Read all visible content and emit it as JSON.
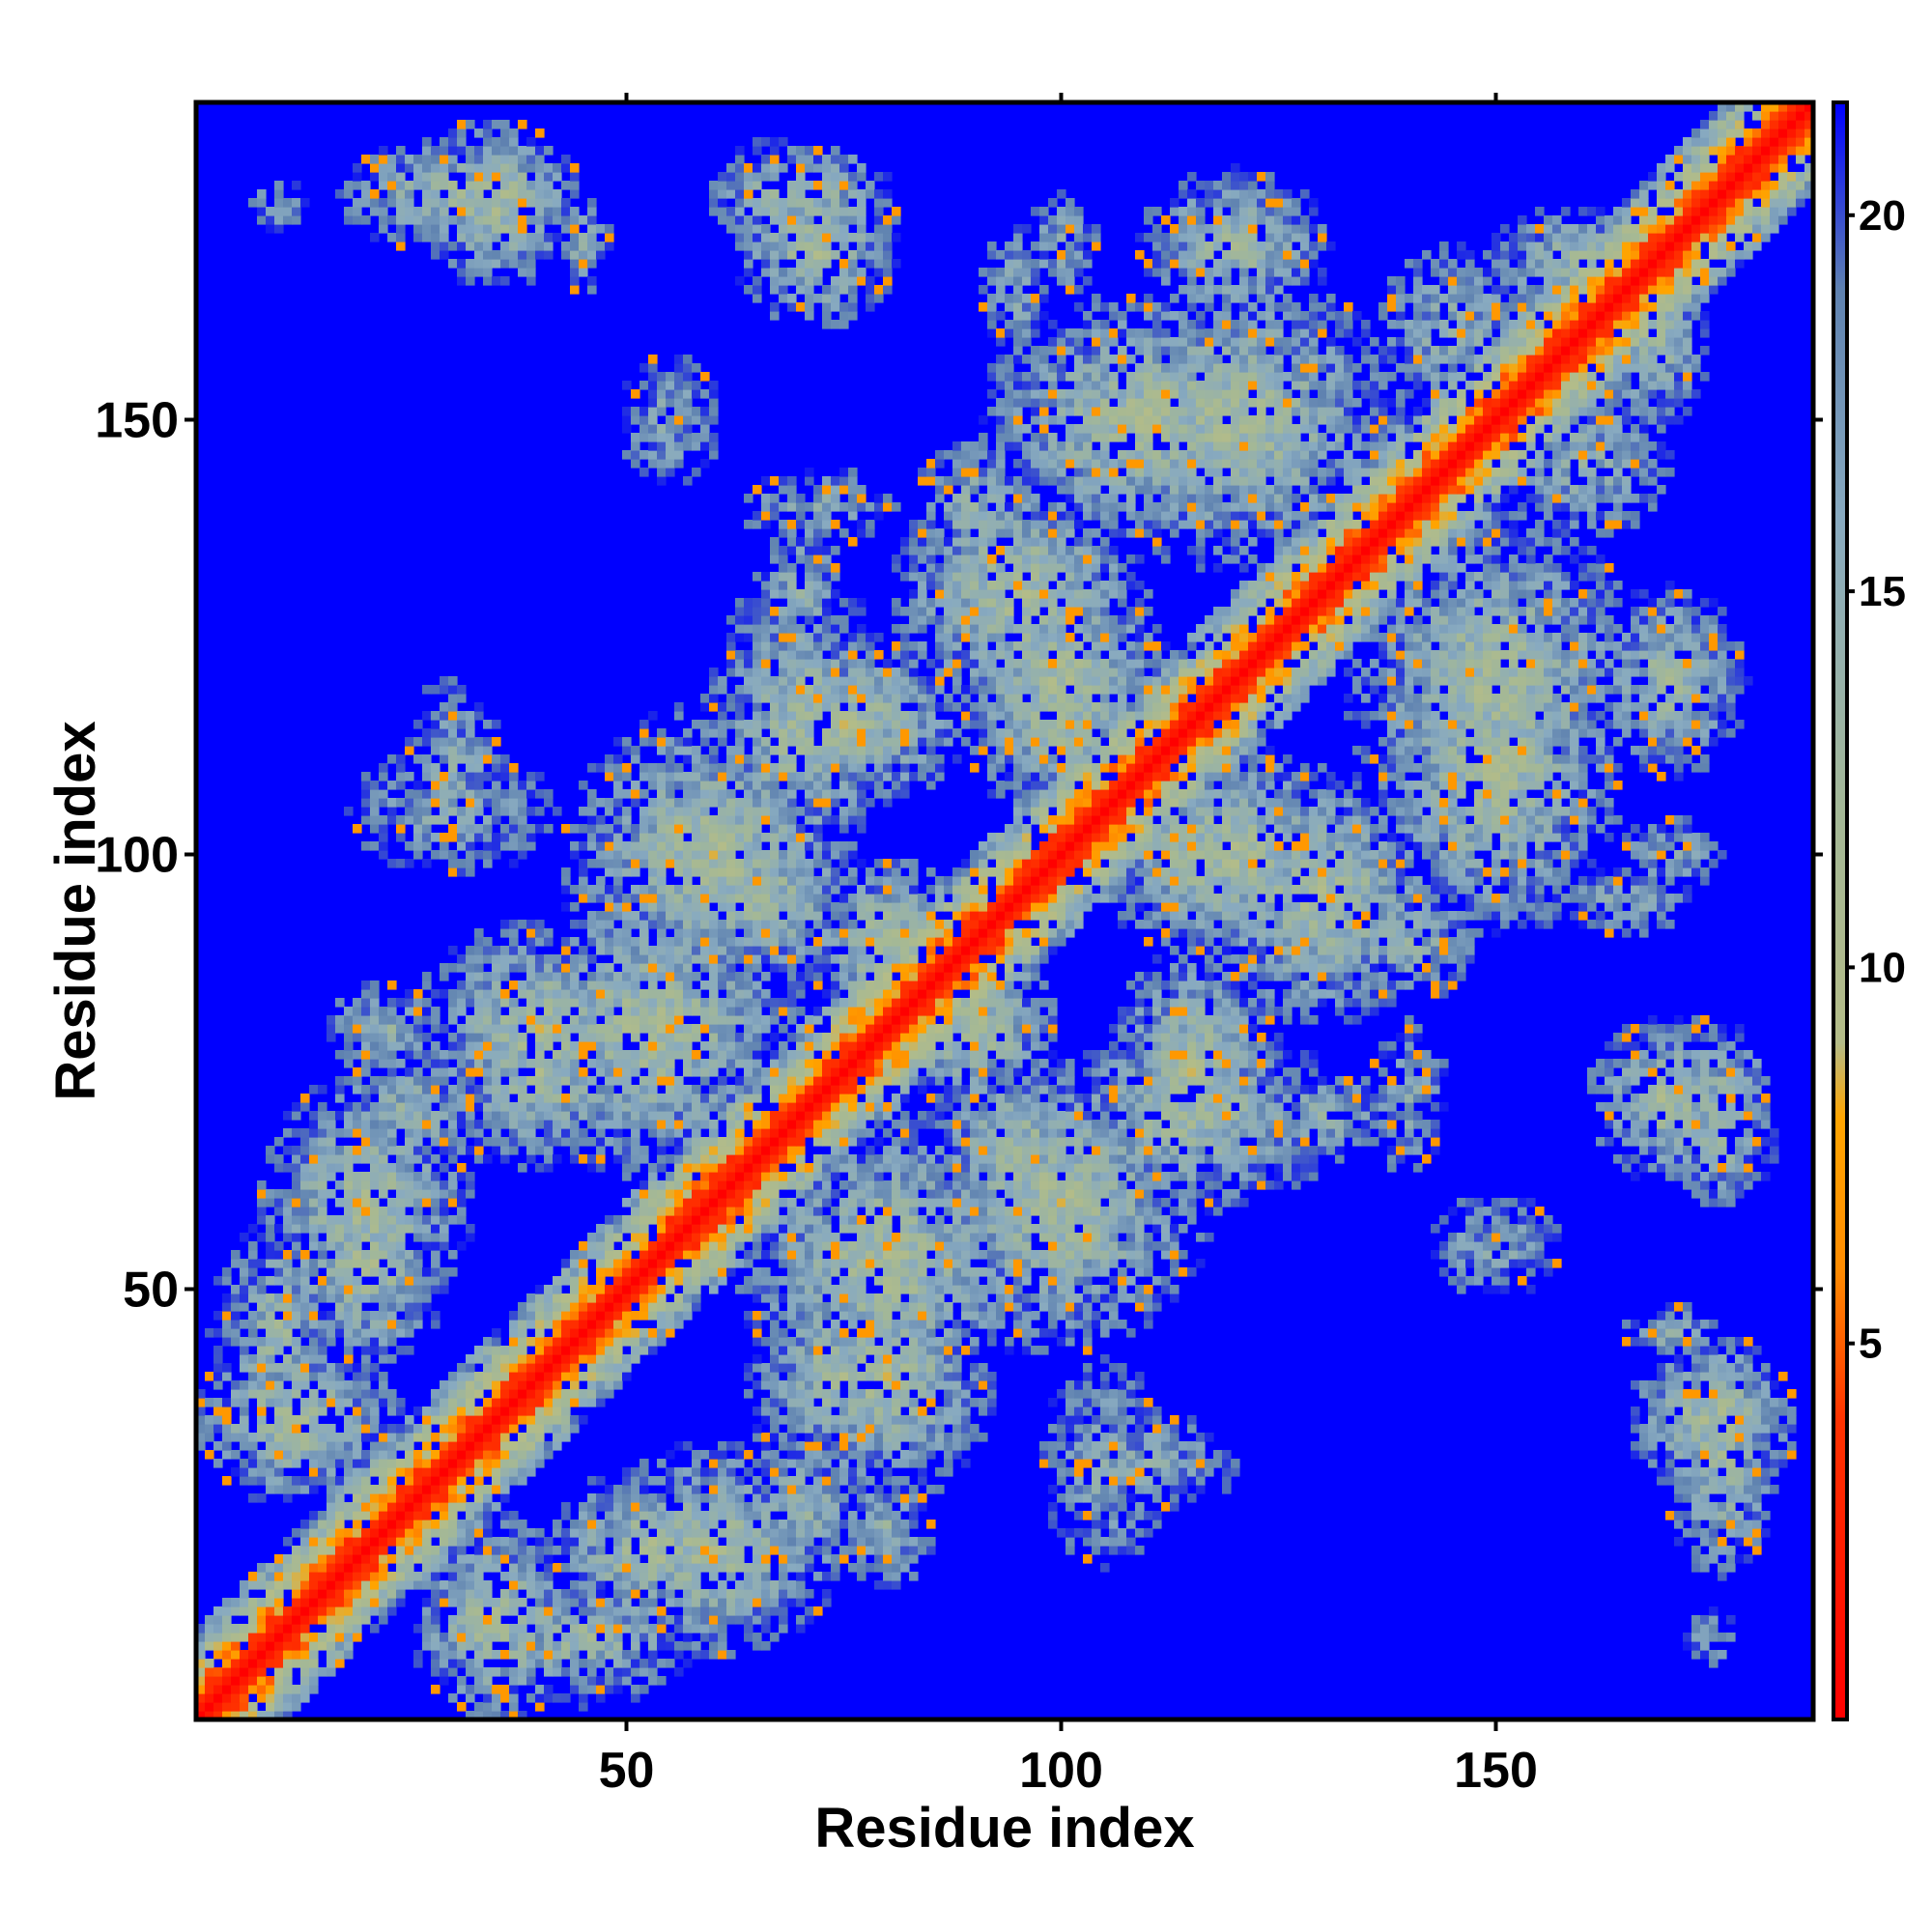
{
  "chart_data": {
    "type": "heatmap",
    "title": "",
    "xlabel": "Residue index",
    "ylabel": "Residue index",
    "n_residues": 186,
    "xlim": [
      1,
      186
    ],
    "ylim": [
      1,
      186
    ],
    "x_ticks": [
      50,
      100,
      150
    ],
    "y_ticks": [
      50,
      100,
      150
    ],
    "x_tick_labels": [
      "50",
      "100",
      "150"
    ],
    "y_tick_labels": [
      "50",
      "100",
      "150"
    ],
    "colorbar": {
      "range": [
        0,
        21.5
      ],
      "ticks": [
        5,
        10,
        15,
        20
      ],
      "tick_labels": [
        "5",
        "10",
        "15",
        "20"
      ],
      "stops": [
        {
          "value": 0,
          "color": "#ff0000"
        },
        {
          "value": 4,
          "color": "#ff3300"
        },
        {
          "value": 6,
          "color": "#ff8c00"
        },
        {
          "value": 8,
          "color": "#ffa500"
        },
        {
          "value": 9,
          "color": "#b4bc88"
        },
        {
          "value": 12,
          "color": "#a4b896"
        },
        {
          "value": 16,
          "color": "#88aac0"
        },
        {
          "value": 19,
          "color": "#5f82b0"
        },
        {
          "value": 21.5,
          "color": "#0000ff"
        }
      ],
      "no_contact_color": "#0000ff"
    },
    "diagonal": {
      "self_distance": 0,
      "near_band_width": 6
    },
    "contact_clusters": [
      {
        "x": 53,
        "y": 80,
        "sx": 14,
        "sy": 14,
        "d": 11
      },
      {
        "x": 20,
        "y": 53,
        "sx": 8,
        "sy": 10,
        "d": 11
      },
      {
        "x": 10,
        "y": 45,
        "sx": 8,
        "sy": 14,
        "d": 13
      },
      {
        "x": 40,
        "y": 75,
        "sx": 12,
        "sy": 10,
        "d": 12
      },
      {
        "x": 25,
        "y": 70,
        "sx": 12,
        "sy": 10,
        "d": 14
      },
      {
        "x": 35,
        "y": 12,
        "sx": 10,
        "sy": 8,
        "d": 11
      },
      {
        "x": 60,
        "y": 20,
        "sx": 10,
        "sy": 12,
        "d": 11
      },
      {
        "x": 80,
        "y": 40,
        "sx": 12,
        "sy": 10,
        "d": 11
      },
      {
        "x": 80,
        "y": 22,
        "sx": 8,
        "sy": 6,
        "d": 14
      },
      {
        "x": 60,
        "y": 100,
        "sx": 14,
        "sy": 14,
        "d": 11
      },
      {
        "x": 70,
        "y": 115,
        "sx": 10,
        "sy": 16,
        "d": 12
      },
      {
        "x": 70,
        "y": 130,
        "sx": 6,
        "sy": 10,
        "d": 14
      },
      {
        "x": 55,
        "y": 150,
        "sx": 8,
        "sy": 10,
        "d": 15
      },
      {
        "x": 30,
        "y": 105,
        "sx": 16,
        "sy": 10,
        "d": 15
      },
      {
        "x": 30,
        "y": 176,
        "sx": 12,
        "sy": 6,
        "d": 12
      },
      {
        "x": 70,
        "y": 176,
        "sx": 10,
        "sy": 6,
        "d": 12
      },
      {
        "x": 100,
        "y": 120,
        "sx": 10,
        "sy": 14,
        "d": 11
      },
      {
        "x": 110,
        "y": 150,
        "sx": 16,
        "sy": 12,
        "d": 11
      },
      {
        "x": 120,
        "y": 170,
        "sx": 10,
        "sy": 8,
        "d": 12
      },
      {
        "x": 95,
        "y": 165,
        "sx": 6,
        "sy": 10,
        "d": 15
      },
      {
        "x": 150,
        "y": 120,
        "sx": 16,
        "sy": 14,
        "d": 11
      },
      {
        "x": 130,
        "y": 95,
        "sx": 12,
        "sy": 12,
        "d": 11
      },
      {
        "x": 115,
        "y": 100,
        "sx": 8,
        "sy": 8,
        "d": 11
      },
      {
        "x": 115,
        "y": 75,
        "sx": 12,
        "sy": 8,
        "d": 11
      },
      {
        "x": 95,
        "y": 65,
        "sx": 12,
        "sy": 10,
        "d": 12
      },
      {
        "x": 90,
        "y": 80,
        "sx": 8,
        "sy": 8,
        "d": 11
      },
      {
        "x": 140,
        "y": 72,
        "sx": 12,
        "sy": 6,
        "d": 15
      },
      {
        "x": 170,
        "y": 72,
        "sx": 8,
        "sy": 8,
        "d": 11
      },
      {
        "x": 175,
        "y": 35,
        "sx": 8,
        "sy": 8,
        "d": 11
      },
      {
        "x": 170,
        "y": 45,
        "sx": 4,
        "sy": 6,
        "d": 14
      },
      {
        "x": 175,
        "y": 10,
        "sx": 4,
        "sy": 5,
        "d": 15
      },
      {
        "x": 110,
        "y": 30,
        "sx": 8,
        "sy": 14,
        "d": 15
      },
      {
        "x": 170,
        "y": 100,
        "sx": 6,
        "sy": 8,
        "d": 15
      },
      {
        "x": 90,
        "y": 140,
        "sx": 8,
        "sy": 10,
        "d": 14
      },
      {
        "x": 160,
        "y": 168,
        "sx": 10,
        "sy": 6,
        "d": 12
      },
      {
        "x": 160,
        "y": 145,
        "sx": 10,
        "sy": 12,
        "d": 14
      }
    ]
  }
}
